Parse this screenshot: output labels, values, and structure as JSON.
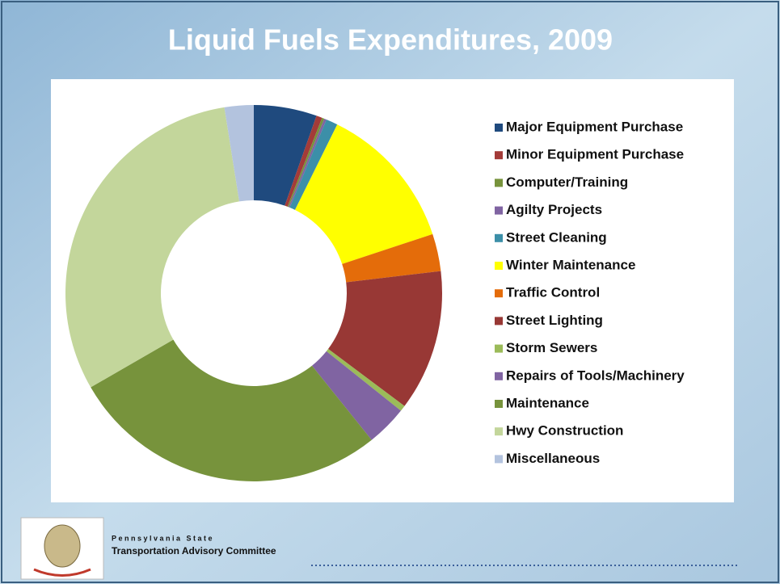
{
  "chart_data": {
    "type": "donut",
    "title": "Liquid Fuels Expenditures, 2009",
    "categories": [
      "Major Equipment Purchase",
      "Minor Equipment Purchase",
      "Computer/Training",
      "Agilty Projects",
      "Street Cleaning",
      "Winter Maintenance",
      "Traffic Control",
      "Street Lighting",
      "Storm Sewers",
      "Repairs of Tools/Machinery",
      "Maintenance",
      "Hwy Construction",
      "Miscellaneous"
    ],
    "values": [
      5.4,
      0.5,
      0.2,
      0.2,
      1,
      12.6,
      3.2,
      12.1,
      0.5,
      3.5,
      27.4,
      30.8,
      2.5
    ],
    "colors": [
      "#1f4a7e",
      "#a33b38",
      "#77933c",
      "#8064a2",
      "#3c8fa8",
      "#ffff00",
      "#e46c0a",
      "#983835",
      "#9bbb59",
      "#8064a2",
      "#77933c",
      "#c3d69b",
      "#b3c3de"
    ],
    "legend": "right"
  },
  "footer": {
    "organization": "Pennsylvania State",
    "committee": "Transportation Advisory Committee"
  }
}
